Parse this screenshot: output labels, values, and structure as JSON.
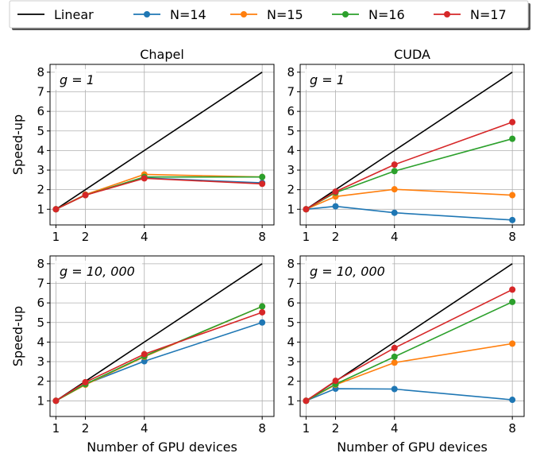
{
  "legend": {
    "entries": [
      {
        "label": "Linear",
        "color": "#000000",
        "marker": false
      },
      {
        "label": "N=14",
        "color": "#1f77b4",
        "marker": true
      },
      {
        "label": "N=15",
        "color": "#ff7f0e",
        "marker": true
      },
      {
        "label": "N=16",
        "color": "#2ca02c",
        "marker": true
      },
      {
        "label": "N=17",
        "color": "#d62728",
        "marker": true
      }
    ]
  },
  "chart_data": [
    {
      "type": "line",
      "title": "Chapel",
      "annotation": "g = 1",
      "xlabel": "",
      "ylabel": "Speed-up",
      "x": [
        1,
        2,
        4,
        8
      ],
      "xticks": [
        "1",
        "2",
        "4",
        "8"
      ],
      "yticks": [
        "1",
        "2",
        "3",
        "4",
        "5",
        "6",
        "7",
        "8"
      ],
      "xlim": [
        0.8,
        8.4
      ],
      "ylim": [
        0.2,
        8.4
      ],
      "grid": true,
      "linear": [
        1,
        2,
        4,
        8
      ],
      "series": [
        {
          "name": "N=14",
          "color": "#1f77b4",
          "values": [
            1.0,
            1.75,
            2.6,
            2.35
          ]
        },
        {
          "name": "N=15",
          "color": "#ff7f0e",
          "values": [
            1.0,
            1.75,
            2.78,
            2.65
          ]
        },
        {
          "name": "N=16",
          "color": "#2ca02c",
          "values": [
            1.0,
            1.72,
            2.65,
            2.65
          ]
        },
        {
          "name": "N=17",
          "color": "#d62728",
          "values": [
            1.0,
            1.72,
            2.58,
            2.3
          ]
        }
      ]
    },
    {
      "type": "line",
      "title": "CUDA",
      "annotation": "g = 1",
      "xlabel": "",
      "ylabel": "",
      "x": [
        1,
        2,
        4,
        8
      ],
      "xticks": [
        "1",
        "2",
        "4",
        "8"
      ],
      "yticks": [
        "1",
        "2",
        "3",
        "4",
        "5",
        "6",
        "7",
        "8"
      ],
      "xlim": [
        0.8,
        8.4
      ],
      "ylim": [
        0.2,
        8.4
      ],
      "grid": true,
      "linear": [
        1,
        2,
        4,
        8
      ],
      "series": [
        {
          "name": "N=14",
          "color": "#1f77b4",
          "values": [
            1.0,
            1.15,
            0.82,
            0.45
          ]
        },
        {
          "name": "N=15",
          "color": "#ff7f0e",
          "values": [
            1.0,
            1.65,
            2.02,
            1.72
          ]
        },
        {
          "name": "N=16",
          "color": "#2ca02c",
          "values": [
            1.0,
            1.85,
            2.95,
            4.6
          ]
        },
        {
          "name": "N=17",
          "color": "#d62728",
          "values": [
            1.0,
            1.9,
            3.28,
            5.45
          ]
        }
      ]
    },
    {
      "type": "line",
      "title": "",
      "annotation": "g = 10, 000",
      "xlabel": "Number of GPU devices",
      "ylabel": "Speed-up",
      "x": [
        1,
        2,
        4,
        8
      ],
      "xticks": [
        "1",
        "2",
        "4",
        "8"
      ],
      "yticks": [
        "1",
        "2",
        "3",
        "4",
        "5",
        "6",
        "7",
        "8"
      ],
      "xlim": [
        0.8,
        8.4
      ],
      "ylim": [
        0.2,
        8.4
      ],
      "grid": true,
      "linear": [
        1,
        2,
        4,
        8
      ],
      "series": [
        {
          "name": "N=14",
          "color": "#1f77b4",
          "values": [
            1.0,
            1.85,
            3.02,
            5.0
          ]
        },
        {
          "name": "N=15",
          "color": "#ff7f0e",
          "values": [
            1.0,
            1.82,
            3.25,
            5.82
          ]
        },
        {
          "name": "N=16",
          "color": "#2ca02c",
          "values": [
            1.0,
            1.85,
            3.28,
            5.82
          ]
        },
        {
          "name": "N=17",
          "color": "#d62728",
          "values": [
            1.0,
            1.95,
            3.38,
            5.52
          ]
        }
      ]
    },
    {
      "type": "line",
      "title": "",
      "annotation": "g = 10, 000",
      "xlabel": "Number of GPU devices",
      "ylabel": "",
      "x": [
        1,
        2,
        4,
        8
      ],
      "xticks": [
        "1",
        "2",
        "4",
        "8"
      ],
      "yticks": [
        "1",
        "2",
        "3",
        "4",
        "5",
        "6",
        "7",
        "8"
      ],
      "xlim": [
        0.8,
        8.4
      ],
      "ylim": [
        0.2,
        8.4
      ],
      "grid": true,
      "linear": [
        1,
        2,
        4,
        8
      ],
      "series": [
        {
          "name": "N=14",
          "color": "#1f77b4",
          "values": [
            1.0,
            1.62,
            1.6,
            1.05
          ]
        },
        {
          "name": "N=15",
          "color": "#ff7f0e",
          "values": [
            1.0,
            1.82,
            2.95,
            3.92
          ]
        },
        {
          "name": "N=16",
          "color": "#2ca02c",
          "values": [
            1.0,
            1.85,
            3.25,
            6.05
          ]
        },
        {
          "name": "N=17",
          "color": "#d62728",
          "values": [
            1.0,
            2.02,
            3.7,
            6.68
          ]
        }
      ]
    }
  ]
}
